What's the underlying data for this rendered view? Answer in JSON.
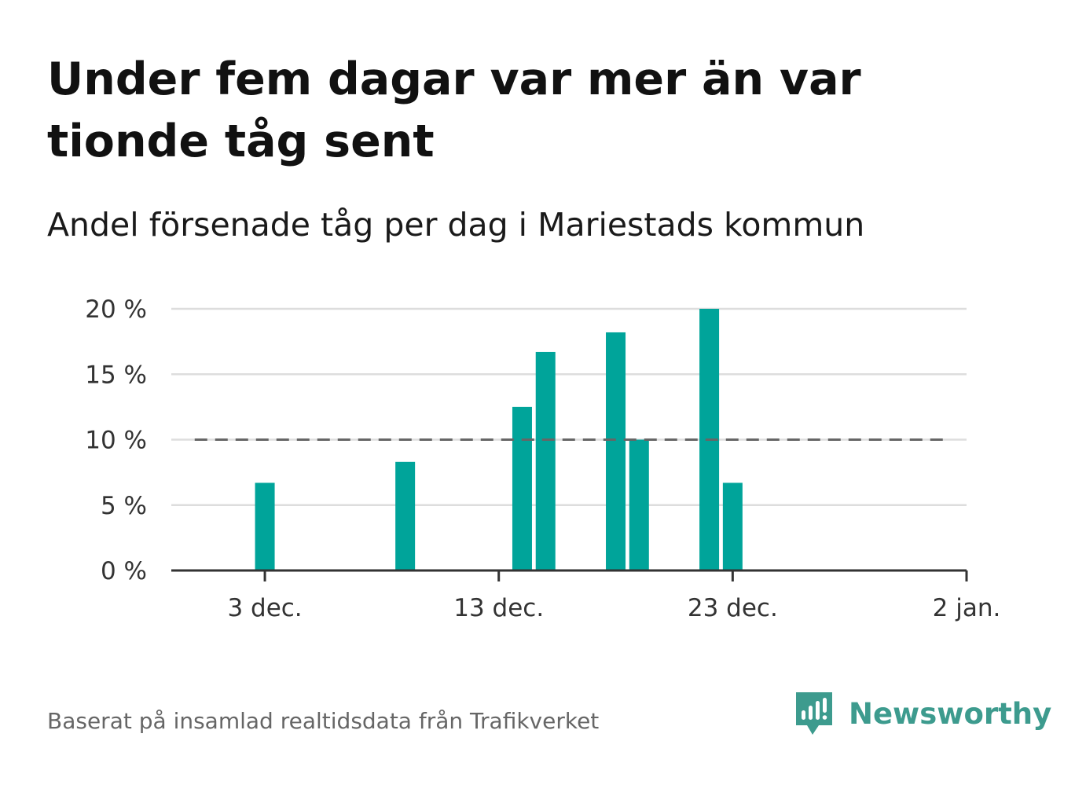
{
  "header": {
    "title": "Under fem dagar var mer än var tionde tåg sent",
    "subtitle": "Andel försenade tåg per dag i Mariestads kommun"
  },
  "footer": {
    "source": "Baserat på insamlad realtidsdata från Trafikverket",
    "brand": "Newsworthy"
  },
  "colors": {
    "bar": "#00a49a",
    "reference_line": "#666666",
    "grid": "#dddddd",
    "axis": "#333333",
    "brand": "#3d9b8e"
  },
  "chart_data": {
    "type": "bar",
    "title": "Under fem dagar var mer än var tionde tåg sent",
    "subtitle": "Andel försenade tåg per dag i Mariestads kommun",
    "x_axis": {
      "type": "date",
      "range": [
        "2023-11-29",
        "2024-01-02"
      ],
      "ticks": [
        {
          "date": "2023-12-03",
          "label": "3 dec."
        },
        {
          "date": "2023-12-13",
          "label": "13 dec."
        },
        {
          "date": "2023-12-23",
          "label": "23 dec."
        },
        {
          "date": "2024-01-02",
          "label": "2 jan."
        }
      ]
    },
    "y_axis": {
      "range": [
        0,
        20
      ],
      "ticks": [
        {
          "value": 0,
          "label": "0 %"
        },
        {
          "value": 5,
          "label": "5 %"
        },
        {
          "value": 10,
          "label": "10 %"
        },
        {
          "value": 15,
          "label": "15 %"
        },
        {
          "value": 20,
          "label": "20 %"
        }
      ],
      "grid": true
    },
    "reference_line": {
      "value": 10,
      "from": "2023-11-30",
      "to": "2024-01-01",
      "style": "dashed"
    },
    "series": [
      {
        "points": [
          {
            "date": "2023-12-03",
            "value": 6.7
          },
          {
            "date": "2023-12-09",
            "value": 8.3
          },
          {
            "date": "2023-12-14",
            "value": 12.5
          },
          {
            "date": "2023-12-15",
            "value": 16.7
          },
          {
            "date": "2023-12-18",
            "value": 18.2
          },
          {
            "date": "2023-12-19",
            "value": 10.0
          },
          {
            "date": "2023-12-22",
            "value": 20.0
          },
          {
            "date": "2023-12-23",
            "value": 6.7
          }
        ]
      }
    ]
  }
}
